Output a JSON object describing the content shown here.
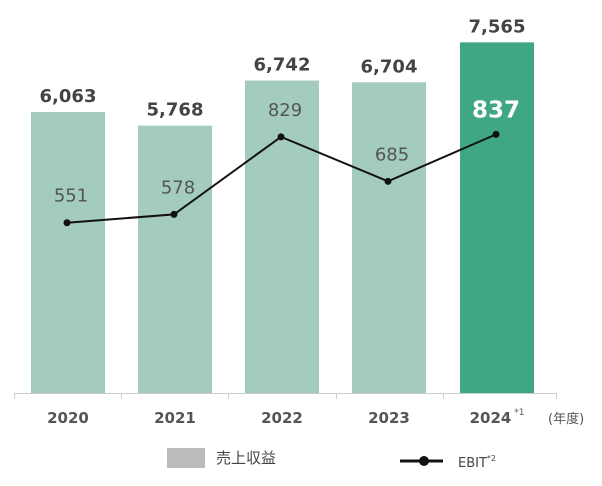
{
  "chart_data": {
    "type": "bar",
    "categories": [
      "2020",
      "2021",
      "2022",
      "2023",
      "2024"
    ],
    "category_notes": [
      "",
      "",
      "",
      "",
      "*1"
    ],
    "unit_label": "(年度)",
    "series": [
      {
        "name": "売上収益",
        "type": "bar",
        "values": [
          6063,
          5768,
          6742,
          6704,
          7565
        ]
      },
      {
        "name": "EBIT",
        "name_note": "*2",
        "type": "line",
        "values": [
          551,
          578,
          829,
          685,
          837
        ]
      }
    ],
    "colors": {
      "bar": "#a3cbbf",
      "bar_highlight": "#3fa882",
      "line": "#111111",
      "legend_bar": "#bbbbbb"
    },
    "highlight_index": 4,
    "value_labels": {
      "bars": [
        "6,063",
        "5,768",
        "6,742",
        "6,704",
        "7,565"
      ],
      "line": [
        "551",
        "578",
        "829",
        "685",
        "837"
      ]
    },
    "legend": {
      "placement": "bottom"
    },
    "grid": false
  }
}
